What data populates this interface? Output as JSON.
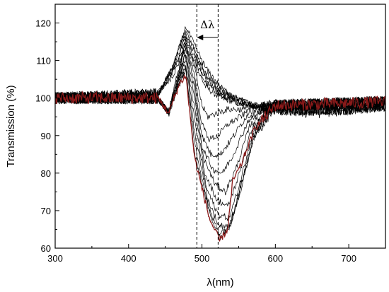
{
  "chart_data": {
    "type": "line",
    "title": "",
    "xlabel": "λ(nm)",
    "ylabel": "Transmission (%)",
    "xlim": [
      300,
      750
    ],
    "ylim": [
      60,
      125
    ],
    "x_ticks": [
      300,
      400,
      500,
      600,
      700
    ],
    "y_ticks": [
      60,
      70,
      80,
      90,
      100,
      110,
      120
    ],
    "grid": false,
    "legend": "none",
    "annotation": {
      "text": "Δλ",
      "vlines": [
        493,
        522
      ],
      "arrow_from": 522,
      "arrow_to": 493
    },
    "series_color": "#000000",
    "highlight_color": "#8b1a1a",
    "series": [
      {
        "x": [
          300,
          440,
          460,
          470,
          478,
          490,
          505,
          525,
          545,
          570,
          600,
          650,
          700,
          750
        ],
        "y": [
          100,
          101,
          106,
          110,
          113,
          109,
          103,
          100,
          99,
          98,
          97,
          97,
          97,
          98
        ]
      },
      {
        "x": [
          300,
          440,
          460,
          470,
          478,
          490,
          505,
          525,
          545,
          570,
          600,
          650,
          700,
          750
        ],
        "y": [
          100,
          101,
          107,
          111,
          115,
          110,
          104,
          101,
          99,
          98,
          97,
          97,
          98,
          98
        ]
      },
      {
        "x": [
          300,
          440,
          460,
          470,
          478,
          490,
          505,
          525,
          545,
          570,
          600,
          650,
          700,
          750
        ],
        "y": [
          100,
          101,
          107,
          112,
          116,
          111,
          105,
          101,
          99,
          98,
          97,
          97,
          97,
          98
        ]
      },
      {
        "x": [
          300,
          440,
          460,
          470,
          478,
          490,
          505,
          525,
          545,
          570,
          600,
          650,
          700,
          750
        ],
        "y": [
          100,
          101,
          108,
          113,
          117,
          112,
          106,
          102,
          100,
          98,
          98,
          97,
          97,
          98
        ]
      },
      {
        "x": [
          300,
          440,
          460,
          470,
          478,
          490,
          505,
          525,
          545,
          570,
          600,
          650,
          700,
          750
        ],
        "y": [
          100,
          101,
          108,
          114,
          118,
          113,
          107,
          102,
          100,
          98,
          97,
          97,
          97,
          98
        ]
      },
      {
        "x": [
          300,
          440,
          460,
          470,
          478,
          490,
          505,
          525,
          545,
          570,
          600,
          650,
          700,
          750
        ],
        "y": [
          100,
          101,
          108,
          114,
          119,
          114,
          108,
          103,
          100,
          98,
          97,
          96,
          97,
          98
        ]
      },
      {
        "x": [
          300,
          440,
          455,
          462,
          470,
          478,
          490,
          500,
          508,
          520,
          535,
          560,
          600,
          750
        ],
        "y": [
          100,
          100,
          97,
          103,
          109,
          116,
          108,
          98,
          95,
          96,
          97,
          97,
          98,
          99
        ]
      },
      {
        "x": [
          300,
          440,
          455,
          462,
          470,
          478,
          490,
          500,
          510,
          522,
          535,
          560,
          600,
          750
        ],
        "y": [
          100,
          100,
          96,
          102,
          108,
          115,
          106,
          93,
          89,
          90,
          93,
          96,
          98,
          99
        ]
      },
      {
        "x": [
          300,
          440,
          455,
          462,
          470,
          478,
          490,
          500,
          512,
          525,
          540,
          560,
          600,
          750
        ],
        "y": [
          100,
          100,
          96,
          102,
          108,
          114,
          104,
          90,
          85,
          85,
          89,
          95,
          98,
          99
        ]
      },
      {
        "x": [
          300,
          440,
          455,
          462,
          470,
          478,
          490,
          500,
          515,
          528,
          543,
          563,
          600,
          750
        ],
        "y": [
          100,
          100,
          96,
          101,
          107,
          113,
          102,
          87,
          81,
          80,
          85,
          94,
          98,
          99
        ]
      },
      {
        "x": [
          300,
          440,
          455,
          462,
          470,
          478,
          490,
          502,
          518,
          532,
          546,
          566,
          600,
          750
        ],
        "y": [
          100,
          100,
          96,
          101,
          107,
          112,
          100,
          84,
          77,
          75,
          81,
          93,
          98,
          99
        ]
      },
      {
        "x": [
          300,
          440,
          455,
          462,
          470,
          478,
          490,
          504,
          520,
          535,
          548,
          568,
          600,
          750
        ],
        "y": [
          100,
          100,
          96,
          101,
          106,
          111,
          97,
          80,
          73,
          71,
          78,
          92,
          98,
          99
        ]
      },
      {
        "x": [
          300,
          440,
          455,
          462,
          470,
          478,
          490,
          506,
          522,
          537,
          550,
          569,
          600,
          750
        ],
        "y": [
          100,
          100,
          96,
          100,
          106,
          110,
          94,
          76,
          69,
          68,
          76,
          91,
          98,
          99
        ]
      },
      {
        "x": [
          300,
          440,
          455,
          462,
          470,
          478,
          490,
          508,
          523,
          538,
          551,
          570,
          600,
          750
        ],
        "y": [
          100,
          100,
          96,
          100,
          105,
          109,
          91,
          73,
          66,
          66,
          75,
          90,
          98,
          99
        ]
      },
      {
        "x": [
          300,
          440,
          455,
          462,
          470,
          478,
          490,
          510,
          524,
          538,
          552,
          571,
          600,
          750
        ],
        "y": [
          100,
          100,
          96,
          100,
          105,
          108,
          88,
          70,
          64,
          66,
          75,
          90,
          98,
          99
        ]
      },
      {
        "x": [
          300,
          440,
          455,
          462,
          470,
          478,
          490,
          512,
          525,
          538,
          552,
          572,
          600,
          750
        ],
        "y": [
          100,
          100,
          96,
          100,
          104,
          107,
          85,
          68,
          63,
          66,
          76,
          90,
          98,
          99
        ]
      },
      {
        "x": [
          300,
          440,
          455,
          462,
          470,
          478,
          490,
          510,
          524,
          535,
          542,
          553,
          572,
          600,
          750
        ],
        "y": [
          100,
          100,
          96,
          100,
          104,
          106,
          84,
          68,
          62,
          65,
          78,
          82,
          92,
          98,
          99
        ],
        "highlight": true
      }
    ]
  }
}
